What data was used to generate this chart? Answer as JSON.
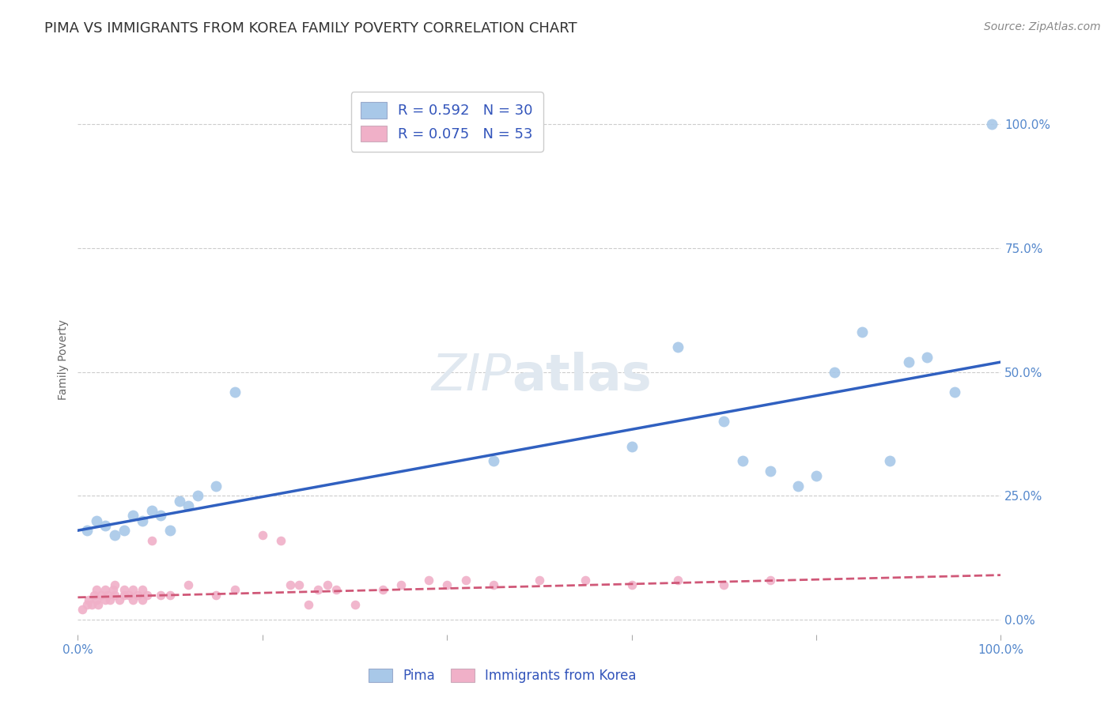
{
  "title": "PIMA VS IMMIGRANTS FROM KOREA FAMILY POVERTY CORRELATION CHART",
  "source": "Source: ZipAtlas.com",
  "ylabel": "Family Poverty",
  "ytick_labels": [
    "0.0%",
    "25.0%",
    "50.0%",
    "75.0%",
    "100.0%"
  ],
  "ytick_values": [
    0,
    25,
    50,
    75,
    100
  ],
  "xlim": [
    0,
    100
  ],
  "ylim": [
    -3,
    108
  ],
  "legend_blue_r": "R = 0.592",
  "legend_blue_n": "N = 30",
  "legend_pink_r": "R = 0.075",
  "legend_pink_n": "N = 53",
  "pima_color": "#a8c8e8",
  "korea_color": "#f0b0c8",
  "pima_line_color": "#3060c0",
  "korea_line_color": "#d05878",
  "korea_line_dashed": true,
  "pima_x": [
    1,
    2,
    3,
    4,
    5,
    6,
    7,
    8,
    9,
    10,
    11,
    12,
    13,
    15,
    17,
    45,
    60,
    65,
    70,
    72,
    75,
    78,
    80,
    82,
    85,
    88,
    90,
    92,
    95,
    99
  ],
  "pima_y": [
    18,
    20,
    19,
    17,
    18,
    21,
    20,
    22,
    21,
    18,
    24,
    23,
    25,
    27,
    46,
    32,
    35,
    55,
    40,
    32,
    30,
    27,
    29,
    50,
    58,
    32,
    52,
    53,
    46,
    100
  ],
  "korea_x": [
    0.5,
    1,
    1.2,
    1.5,
    1.8,
    2,
    2,
    2.2,
    2.5,
    3,
    3,
    3.2,
    3.5,
    3.8,
    4,
    4,
    4.5,
    5,
    5,
    5.5,
    6,
    6,
    6.5,
    7,
    7,
    7.5,
    8,
    9,
    10,
    12,
    15,
    17,
    20,
    22,
    23,
    24,
    25,
    26,
    27,
    28,
    30,
    33,
    35,
    38,
    40,
    42,
    45,
    50,
    55,
    60,
    65,
    70,
    75
  ],
  "korea_y": [
    2,
    3,
    4,
    3,
    5,
    4,
    6,
    3,
    5,
    4,
    6,
    5,
    4,
    6,
    5,
    7,
    4,
    5,
    6,
    5,
    6,
    4,
    5,
    6,
    4,
    5,
    16,
    5,
    5,
    7,
    5,
    6,
    17,
    16,
    7,
    7,
    3,
    6,
    7,
    6,
    3,
    6,
    7,
    8,
    7,
    8,
    7,
    8,
    8,
    7,
    8,
    7,
    8
  ],
  "pima_trendline_x": [
    0,
    100
  ],
  "pima_trendline_y": [
    18,
    52
  ],
  "korea_trendline_x": [
    0,
    100
  ],
  "korea_trendline_y": [
    4.5,
    9
  ],
  "background_color": "#ffffff",
  "grid_color": "#cccccc",
  "title_fontsize": 13,
  "label_fontsize": 10,
  "tick_fontsize": 11
}
